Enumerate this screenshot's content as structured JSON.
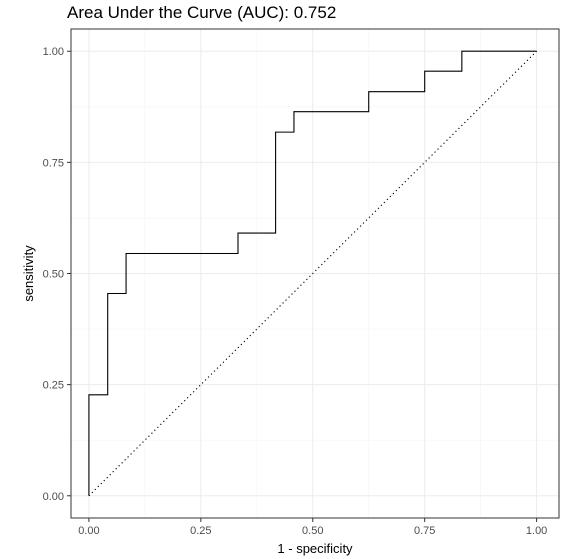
{
  "chart_data": {
    "type": "line",
    "title": "Area Under the Curve (AUC): 0.752",
    "xlabel": "1 - specificity",
    "ylabel": "sensitivity",
    "xlim": [
      -0.04,
      1.05
    ],
    "ylim": [
      -0.05,
      1.05
    ],
    "x_ticks": [
      0,
      0.25,
      0.5,
      0.75,
      1
    ],
    "x_tick_labels": [
      "0.00",
      "0.25",
      "0.50",
      "0.75",
      "1.00"
    ],
    "y_ticks": [
      0,
      0.25,
      0.5,
      0.75,
      1
    ],
    "y_tick_labels": [
      "0.00",
      "0.25",
      "0.50",
      "0.75",
      "1.00"
    ],
    "grid": true,
    "reference_line": {
      "x": [
        0,
        1
      ],
      "y": [
        0,
        1
      ],
      "style": "dotted"
    },
    "series": [
      {
        "style": "step",
        "x": [
          0,
          0,
          0.042,
          0.042,
          0.083,
          0.083,
          0.333,
          0.333,
          0.417,
          0.417,
          0.458,
          0.458,
          0.625,
          0.625,
          0.75,
          0.75,
          0.833,
          0.833,
          1.0
        ],
        "y": [
          0,
          0.227,
          0.227,
          0.455,
          0.455,
          0.545,
          0.545,
          0.591,
          0.591,
          0.818,
          0.818,
          0.864,
          0.864,
          0.909,
          0.909,
          0.955,
          0.955,
          1.0,
          1.0
        ]
      }
    ]
  }
}
